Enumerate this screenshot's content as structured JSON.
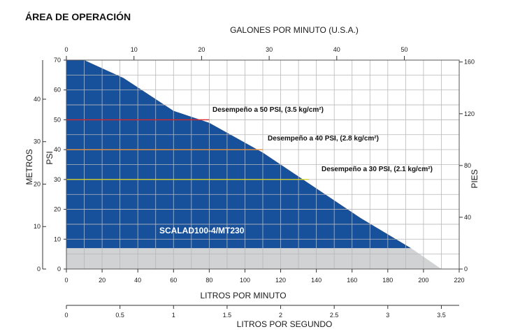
{
  "chart_data": {
    "type": "area",
    "title": "ÁREA DE OPERACIÓN",
    "product_label": "SCALAD100-4/MT230",
    "axes": {
      "bottom": {
        "label": "LITROS POR MINUTO",
        "min": 0,
        "max": 220,
        "ticks": [
          0,
          20,
          40,
          60,
          80,
          100,
          120,
          140,
          160,
          180,
          200,
          220
        ]
      },
      "top": {
        "label": "GALONES POR MINUTO (U.S.A.)",
        "ticks": [
          "0",
          "10",
          "20",
          "30",
          "40",
          "50"
        ]
      },
      "second_bottom": {
        "label": "LITROS POR SEGUNDO",
        "ticks": [
          "0",
          "0.5",
          "1",
          "1.5",
          "2",
          "2.5",
          "3",
          "3.5"
        ]
      },
      "left_psi": {
        "label": "PSI",
        "min": 0,
        "max": 70,
        "ticks": [
          0,
          10,
          20,
          30,
          40,
          50,
          60,
          70
        ]
      },
      "left_metros": {
        "label": "METROS",
        "ticks": [
          "0",
          "10",
          "20",
          "30",
          "40"
        ]
      },
      "right": {
        "label": "PIES",
        "ticks": [
          "0",
          "40",
          "80",
          "120",
          "160"
        ]
      }
    },
    "grid": true,
    "series": [
      {
        "role": "operating-area",
        "color": "#17509b",
        "points": [
          [
            0,
            70
          ],
          [
            10,
            70
          ],
          [
            32,
            64
          ],
          [
            60,
            53
          ],
          [
            80,
            49
          ],
          [
            110,
            39
          ],
          [
            135,
            29
          ],
          [
            165,
            17
          ],
          [
            193,
            7
          ],
          [
            0,
            7
          ]
        ]
      },
      {
        "role": "extended-range",
        "color": "#d0d2d3",
        "points": [
          [
            0,
            7
          ],
          [
            193,
            7
          ],
          [
            210,
            0
          ],
          [
            0,
            0
          ]
        ]
      }
    ],
    "performance_lines": [
      {
        "label": "Desempeño a 50 PSI, (3.5 kg/cm²)",
        "psi": 50,
        "x_end": 80,
        "color": "#d9262b"
      },
      {
        "label": "Desempeño a 40 PSI, (2.8 kg/cm²)",
        "psi": 40,
        "x_end": 110,
        "color": "#e8923a"
      },
      {
        "label": "Desempeño a 30 PSI, (2.1 kg/cm²)",
        "psi": 30,
        "x_end": 136,
        "color": "#d8d02a"
      }
    ]
  }
}
